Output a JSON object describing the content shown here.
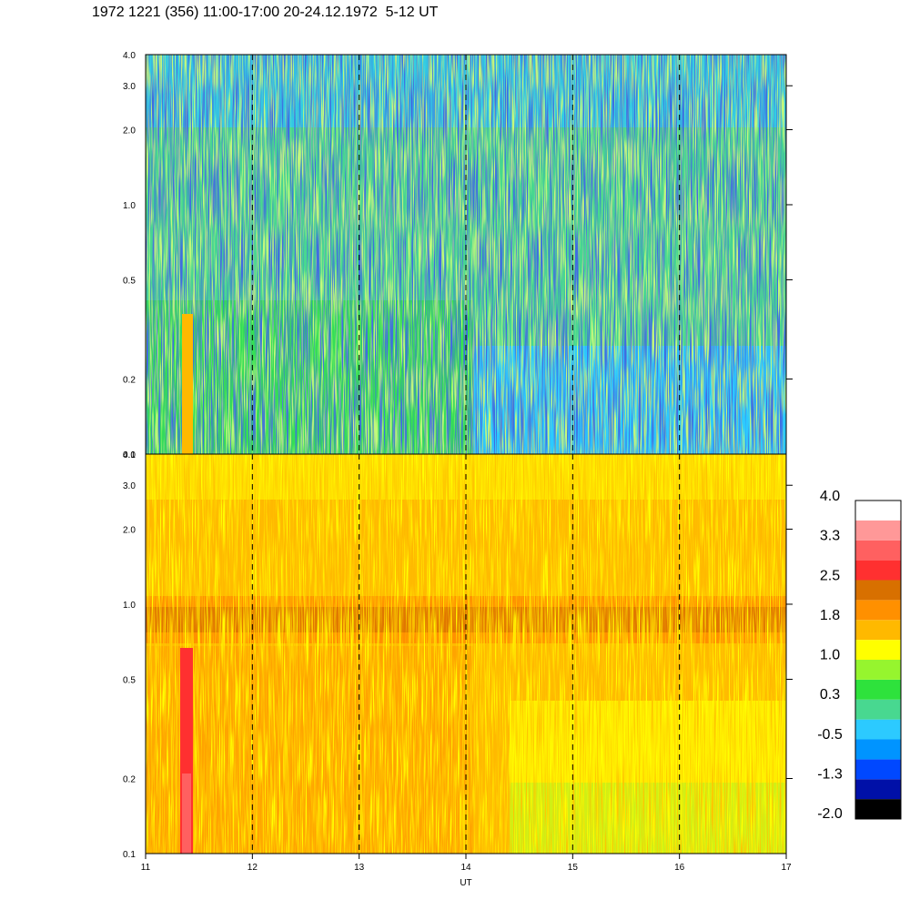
{
  "title": "1972 1221 (356) 11:00-17:00 20-24.12.1972  5-12 UT",
  "chart_data": {
    "type": "heatmap",
    "title": "1972 1221 (356) 11:00-17:00 20-24.12.1972  5-12 UT",
    "xlabel": "UT",
    "x_range": [
      11,
      17
    ],
    "x_ticks": [
      "11",
      "12",
      "13",
      "14",
      "15",
      "16",
      "17"
    ],
    "y_scale": "log",
    "panels": [
      {
        "name": "",
        "y_range": [
          0.1,
          4.0
        ],
        "y_ticks": [
          "4.0",
          "3.0",
          "2.0",
          "1.0",
          "0.5",
          "0.2",
          "0.1"
        ],
        "dominant_levels": "green to cyan (approx. -1.3 to 1.0), blue streaks",
        "features": [
          "orange vertical band near 11.4 UT below 0.35",
          "cyan area 14.0-17.0 UT below 0.3"
        ]
      },
      {
        "name": "",
        "y_range": [
          0.1,
          4.0
        ],
        "y_ticks": [
          "4.0",
          "3.0",
          "2.0",
          "1.0",
          "0.5",
          "0.2",
          "0.1"
        ],
        "dominant_levels": "yellow to orange (approx. 1.0 to 2.5)",
        "features": [
          "dark orange horizontal band between 0.8 and 1.0",
          "red vertical band near 11.4 UT below 0.7",
          "yellow-green area 14.4-17.0 UT below 0.35"
        ]
      }
    ],
    "grid": "dashed vertical lines at each hour",
    "colorbar": {
      "position": "right",
      "labels": [
        "4.0",
        "3.3",
        "2.5",
        "1.8",
        "1.0",
        "0.3",
        "-0.5",
        "-1.3",
        "-2.0"
      ],
      "colors": [
        "#000000",
        "#0010a8",
        "#0048ff",
        "#0094ff",
        "#2ccaff",
        "#48d890",
        "#2ee23c",
        "#96f52e",
        "#ffff00",
        "#ffb900",
        "#ff9000",
        "#d87000",
        "#ff3030",
        "#ff6060",
        "#ff9898",
        "#ffffff"
      ]
    }
  }
}
